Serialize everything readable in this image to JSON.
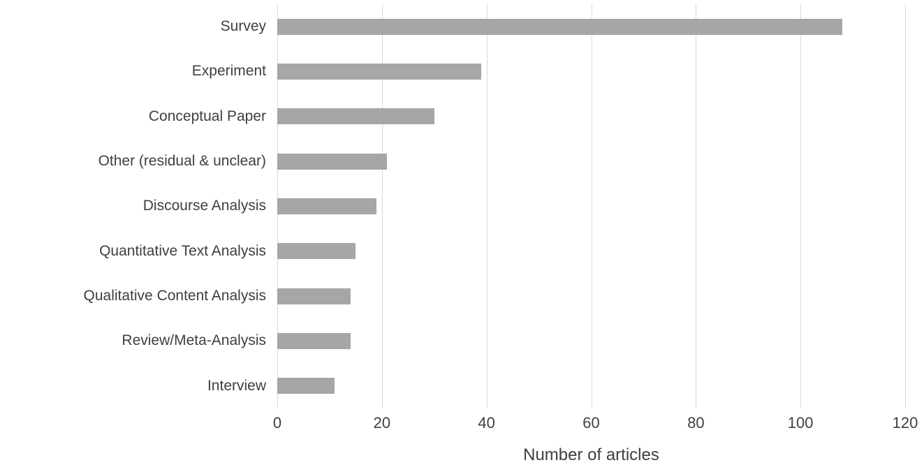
{
  "chart_data": {
    "type": "bar",
    "orientation": "horizontal",
    "title": "",
    "xlabel": "Number of articles",
    "ylabel": "",
    "xlim": [
      0,
      120
    ],
    "xticks": [
      0,
      20,
      40,
      60,
      80,
      100,
      120
    ],
    "grid": "vertical",
    "legend": "none",
    "categories": [
      "Survey",
      "Experiment",
      "Conceptual Paper",
      "Other (residual & unclear)",
      "Discourse Analysis",
      "Quantitative Text Analysis",
      "Qualitative Content Analysis",
      "Review/Meta-Analysis",
      "Interview"
    ],
    "values": [
      108,
      39,
      30,
      21,
      19,
      15,
      14,
      14,
      11
    ],
    "colors": {
      "bar": "#a6a6a6",
      "gridline": "#d9d9d9",
      "text": "#3f3f3f",
      "background": "#ffffff"
    }
  }
}
